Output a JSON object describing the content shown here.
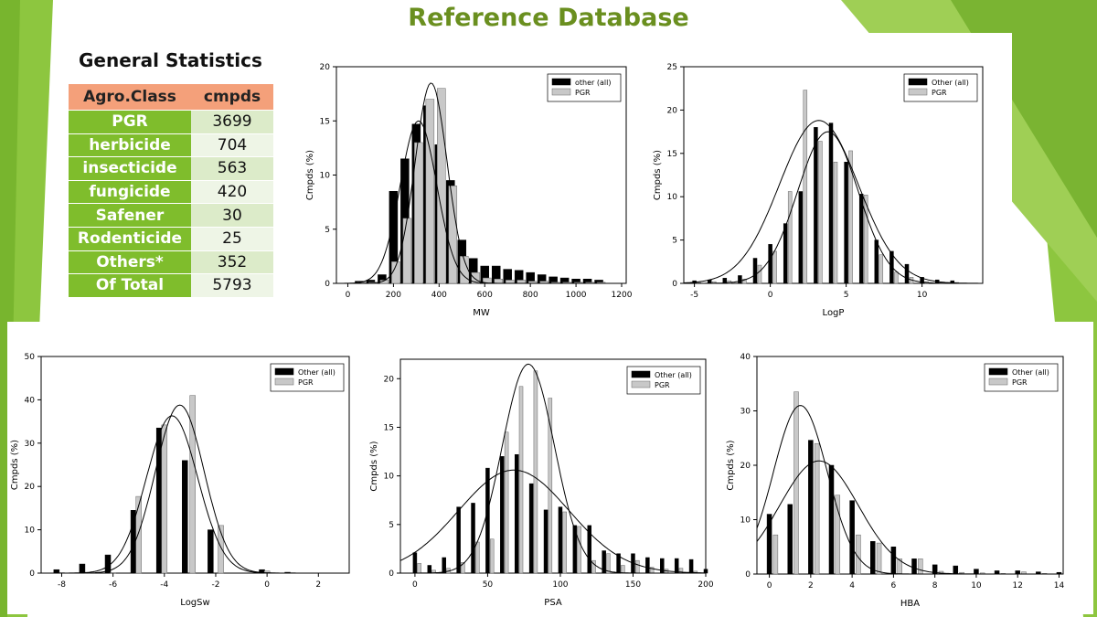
{
  "slide": {
    "title": "Reference Database",
    "stats_heading": "General Statistics",
    "stats_table": {
      "headers": [
        "Agro.Class",
        "cmpds"
      ],
      "rows": [
        {
          "cls": "PGR",
          "count": "3699"
        },
        {
          "cls": "herbicide",
          "count": "704"
        },
        {
          "cls": "insecticide",
          "count": "563"
        },
        {
          "cls": "fungicide",
          "count": "420"
        },
        {
          "cls": "Safener",
          "count": "30"
        },
        {
          "cls": "Rodenticide",
          "count": "25"
        },
        {
          "cls": "Others*",
          "count": "352"
        },
        {
          "cls": "Of Total",
          "count": "5793"
        }
      ]
    },
    "colors": {
      "title": "#6a8f1f",
      "green_band": "#7fbd2c",
      "header": "#f4a07a",
      "other_series": "#000000",
      "pgr_series": "#c8c8c8"
    }
  },
  "chart_data": [
    {
      "type": "bar",
      "xlabel": "MW",
      "ylabel": "Cmpds (%)",
      "xlim": [
        -50,
        1220
      ],
      "ylim": [
        0,
        20
      ],
      "xticks": [
        0,
        200,
        400,
        600,
        800,
        1000,
        1200
      ],
      "yticks": [
        0,
        5,
        10,
        15,
        20
      ],
      "legend_position": "top-right",
      "bar_width": 9,
      "series": [
        {
          "name": "other (all)",
          "color": "#000000",
          "x": [
            50,
            100,
            150,
            200,
            250,
            300,
            350,
            400,
            450,
            500,
            550,
            600,
            650,
            700,
            750,
            800,
            850,
            900,
            950,
            1000,
            1050,
            1100
          ],
          "values": [
            0.2,
            0.3,
            0.8,
            8.5,
            11.5,
            14.7,
            16.4,
            12.8,
            9.5,
            4.0,
            2.3,
            1.6,
            1.6,
            1.3,
            1.2,
            1.0,
            0.8,
            0.6,
            0.5,
            0.4,
            0.4,
            0.3
          ]
        },
        {
          "name": "PGR",
          "color": "#c8c8c8",
          "x": [
            60,
            110,
            160,
            210,
            260,
            310,
            360,
            410,
            460,
            510,
            560,
            610,
            660,
            710,
            760,
            810,
            860,
            910,
            960,
            1010,
            1060,
            1110
          ],
          "values": [
            0.1,
            0.1,
            0.3,
            2.0,
            6.0,
            13.0,
            17.0,
            18.0,
            9.0,
            2.5,
            1.0,
            0.5,
            0.4,
            0.3,
            0.3,
            0.2,
            0.2,
            0.1,
            0.1,
            0.1,
            0.1,
            0.1
          ]
        }
      ],
      "curves": [
        {
          "mean": 310,
          "sd": 80,
          "peak": 15.0
        },
        {
          "mean": 365,
          "sd": 70,
          "peak": 18.5
        }
      ]
    },
    {
      "type": "bar",
      "xlabel": "LogP",
      "ylabel": "Cmpds (%)",
      "xlim": [
        -5.7,
        14
      ],
      "ylim": [
        0,
        25
      ],
      "xticks": [
        -5,
        0,
        5,
        10
      ],
      "yticks": [
        0,
        5,
        10,
        15,
        20,
        25
      ],
      "legend_position": "top-right",
      "bar_width": 4,
      "series": [
        {
          "name": "Other (all)",
          "color": "#000000",
          "x": [
            -5,
            -4,
            -3,
            -2,
            -1,
            0,
            1,
            2,
            3,
            4,
            5,
            6,
            7,
            8,
            9,
            10,
            11,
            12
          ],
          "values": [
            0.3,
            0.4,
            0.6,
            0.9,
            2.9,
            4.5,
            6.9,
            10.6,
            18.0,
            18.5,
            14.0,
            10.3,
            5.0,
            3.7,
            2.2,
            0.7,
            0.4,
            0.3
          ]
        },
        {
          "name": "PGR",
          "color": "#c8c8c8",
          "x": [
            -4.7,
            -3.7,
            -2.7,
            -1.7,
            -0.7,
            0.3,
            1.3,
            2.3,
            3.3,
            4.3,
            5.3,
            6.3,
            7.3,
            8.3,
            9.3,
            10.3,
            11.3,
            12.3
          ],
          "values": [
            0.1,
            0.2,
            0.3,
            0.5,
            2.1,
            3.7,
            10.6,
            22.3,
            16.4,
            14.0,
            15.3,
            10.2,
            3.3,
            1.3,
            0.7,
            0.2,
            0.1,
            0.1
          ]
        }
      ],
      "curves": [
        {
          "mean": 3.2,
          "sd": 2.6,
          "peak": 18.8
        },
        {
          "mean": 3.8,
          "sd": 2.0,
          "peak": 17.5
        }
      ]
    },
    {
      "type": "bar",
      "xlabel": "LogSw",
      "ylabel": "Cmpds (%)",
      "xlim": [
        -8.8,
        3.2
      ],
      "ylim": [
        0,
        50
      ],
      "xticks": [
        -8,
        -6,
        -4,
        -2,
        0,
        2
      ],
      "yticks": [
        0,
        10,
        20,
        30,
        40,
        50
      ],
      "legend_position": "top-right",
      "bar_width": 6,
      "series": [
        {
          "name": "Other (all)",
          "color": "#000000",
          "x": [
            -8.2,
            -7.2,
            -6.2,
            -5.2,
            -4.2,
            -3.2,
            -2.2,
            -0.2,
            0.8
          ],
          "values": [
            0.8,
            2.1,
            4.2,
            14.5,
            33.5,
            26.0,
            10.0,
            0.8,
            0.2
          ]
        },
        {
          "name": "PGR",
          "color": "#c8c8c8",
          "x": [
            -8.0,
            -7.0,
            -6.0,
            -5.0,
            -4.0,
            -2.9,
            -1.8,
            0.0,
            1.0
          ],
          "values": [
            0.1,
            0.1,
            0.1,
            17.7,
            34.2,
            41.0,
            11.0,
            0.5,
            0.1
          ]
        }
      ],
      "curves": [
        {
          "mean": -3.7,
          "sd": 1.0,
          "peak": 36.3
        },
        {
          "mean": -3.4,
          "sd": 0.95,
          "peak": 38.8
        }
      ]
    },
    {
      "type": "bar",
      "xlabel": "PSA",
      "ylabel": "Cmpds (%)",
      "xlim": [
        -10,
        200
      ],
      "ylim": [
        0,
        22
      ],
      "xticks": [
        0,
        50,
        100,
        150,
        200
      ],
      "yticks": [
        0,
        5,
        10,
        15,
        20
      ],
      "legend_position": "top-right",
      "bar_width": 4,
      "series": [
        {
          "name": "Other (all)",
          "color": "#000000",
          "x": [
            0,
            10,
            20,
            30,
            40,
            50,
            60,
            70,
            80,
            90,
            100,
            110,
            120,
            130,
            140,
            150,
            160,
            170,
            180,
            190,
            200
          ],
          "values": [
            2.1,
            0.8,
            1.6,
            6.8,
            7.2,
            10.8,
            12.0,
            12.2,
            9.2,
            6.5,
            6.8,
            4.9,
            4.9,
            2.3,
            2.0,
            2.0,
            1.6,
            1.5,
            1.5,
            1.4,
            0.4
          ]
        },
        {
          "name": "PGR",
          "color": "#c8c8c8",
          "x": [
            3,
            13,
            23,
            33,
            43,
            53,
            63,
            73,
            83,
            93,
            103,
            113,
            123,
            133,
            143,
            153,
            163,
            173,
            183,
            193
          ],
          "values": [
            1.0,
            0.3,
            0.5,
            1.1,
            3.2,
            3.5,
            14.5,
            19.2,
            20.8,
            18.0,
            6.3,
            4.8,
            1.3,
            2.0,
            0.8,
            1.3,
            0.6,
            0.4,
            0.5,
            0.2
          ]
        }
      ],
      "curves": [
        {
          "mean": 68,
          "sd": 38,
          "peak": 10.6
        },
        {
          "mean": 78,
          "sd": 18,
          "peak": 21.5
        }
      ]
    },
    {
      "type": "bar",
      "xlabel": "HBA",
      "ylabel": "Cmpds (%)",
      "xlim": [
        -0.6,
        14.2
      ],
      "ylim": [
        0,
        40
      ],
      "xticks": [
        0,
        2,
        4,
        6,
        8,
        10,
        12,
        14
      ],
      "yticks": [
        0,
        10,
        20,
        30,
        40
      ],
      "legend_position": "top-right",
      "bar_width": 5,
      "series": [
        {
          "name": "Other (all)",
          "color": "#000000",
          "x": [
            0,
            1,
            2,
            3,
            4,
            5,
            6,
            7,
            8,
            9,
            10,
            11,
            12,
            13,
            14
          ],
          "values": [
            11.0,
            12.8,
            24.6,
            20.0,
            13.5,
            6.0,
            5.0,
            2.8,
            1.7,
            1.5,
            0.9,
            0.6,
            0.6,
            0.4,
            0.3
          ]
        },
        {
          "name": "PGR",
          "color": "#c8c8c8",
          "x": [
            0.3,
            1.3,
            2.3,
            3.3,
            4.3,
            5.3,
            6.3,
            7.3,
            8.3,
            9.3,
            10.3,
            11.3,
            12.3,
            13.3
          ],
          "values": [
            7.2,
            33.5,
            24.0,
            14.5,
            7.2,
            5.7,
            2.8,
            2.8,
            0.5,
            0.3,
            0.2,
            0.1,
            0.4,
            0.1
          ]
        }
      ],
      "curves": [
        {
          "mean": 2.4,
          "sd": 1.9,
          "peak": 20.8
        },
        {
          "mean": 1.5,
          "sd": 1.3,
          "peak": 31.0
        }
      ]
    }
  ]
}
